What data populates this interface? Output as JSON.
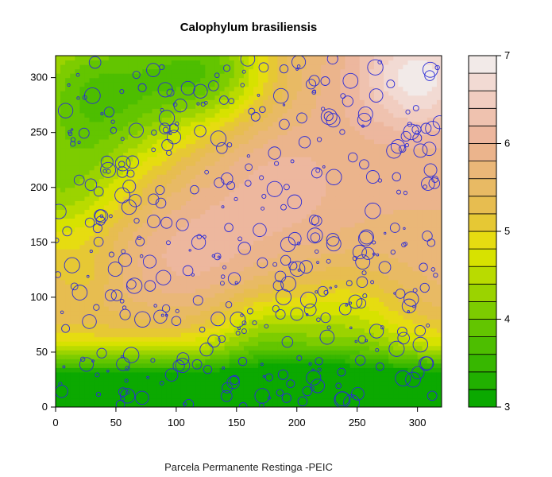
{
  "chart_data": {
    "type": "heatmap",
    "title": "Calophylum brasiliensis",
    "caption": "Parcela Permanente Restinga -PEIC",
    "xlabel": "",
    "ylabel": "",
    "xlim": [
      0,
      320
    ],
    "ylim": [
      0,
      320
    ],
    "xticks": [
      "0",
      "50",
      "100",
      "150",
      "200",
      "250",
      "300"
    ],
    "yticks": [
      "0",
      "50",
      "100",
      "150",
      "200",
      "250",
      "300"
    ],
    "colorbar": {
      "range": [
        3,
        7
      ],
      "ticks": [
        "3",
        "4",
        "5",
        "6",
        "7"
      ],
      "levels": 20
    },
    "overlay": {
      "type": "scatter",
      "marker": "circle",
      "color": "#2b2bd6",
      "note": "tree positions; circle size proportional to individual size"
    },
    "colors": {
      "low": "#00a600",
      "mid": "#e6e600",
      "high": "#f2f2f2",
      "points": "#2b2bd6"
    }
  }
}
